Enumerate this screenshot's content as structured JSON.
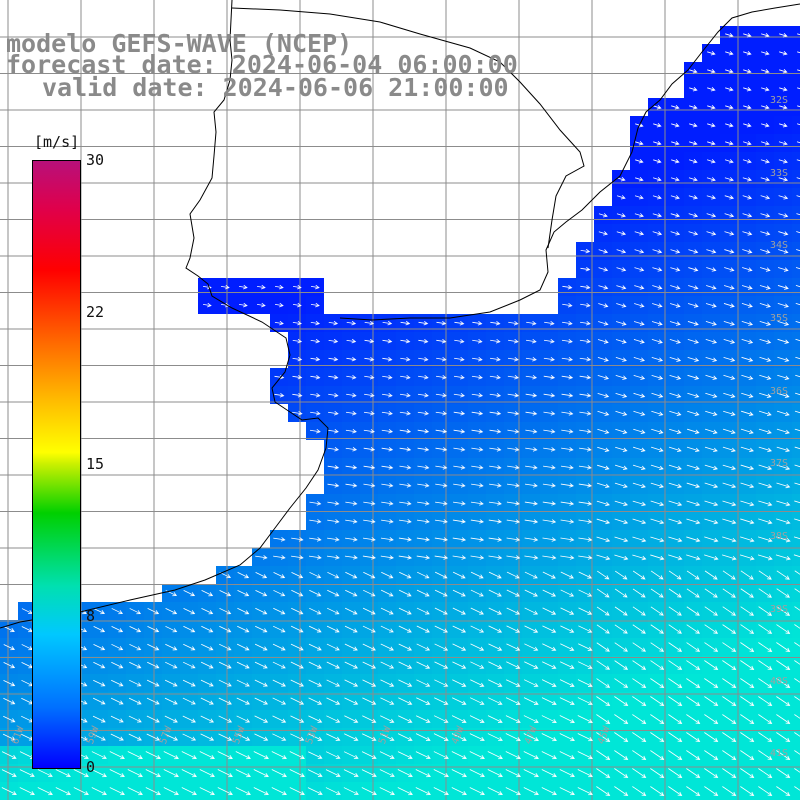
{
  "header": {
    "model": "modelo GEFS-WAVE (NCEP)",
    "forecast": "forecast date: 2024-06-04 06:00:00",
    "valid": "valid date: 2024-06-06 21:00:00"
  },
  "colorbar": {
    "unit": "[m/s]",
    "ticks": [
      "30",
      "22",
      "15",
      "8",
      "0"
    ]
  },
  "grid_labels": {
    "lon": [
      "61W",
      "59W",
      "57W",
      "55W",
      "53W",
      "51W",
      "49W",
      "47W",
      "45W"
    ],
    "lat": [
      "32S",
      "33S",
      "34S",
      "35S",
      "36S",
      "37S",
      "38S",
      "39S",
      "40S",
      "41S"
    ]
  },
  "colors": {
    "land": "#ffffff",
    "coast": "#000000",
    "grid": "#8c8c8c",
    "arrow": "#ffffff",
    "wind_low": "#0010ff",
    "wind_high": "#00e0c0"
  }
}
